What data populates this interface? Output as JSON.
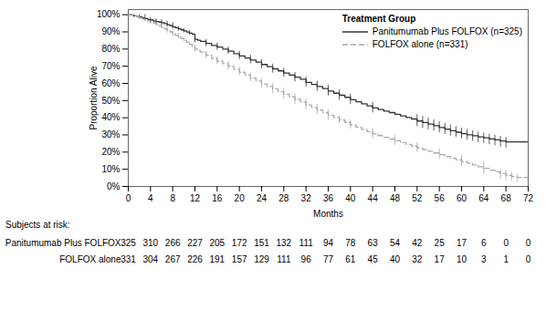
{
  "chart_data": {
    "type": "line",
    "title": "",
    "xlabel": "Months",
    "ylabel": "Proportion Alive",
    "legend_title": "Treatment Group",
    "legend": "upper right",
    "xlim": [
      0,
      72
    ],
    "ylim": [
      0,
      1.03
    ],
    "xticks": [
      0,
      4,
      8,
      12,
      16,
      20,
      24,
      28,
      32,
      36,
      40,
      44,
      48,
      52,
      56,
      60,
      64,
      68,
      72
    ],
    "yticks": [
      {
        "value": 0.0,
        "label": "0%"
      },
      {
        "value": 0.1,
        "label": "10%"
      },
      {
        "value": 0.2,
        "label": "20%"
      },
      {
        "value": 0.3,
        "label": "30%"
      },
      {
        "value": 0.4,
        "label": "40%"
      },
      {
        "value": 0.5,
        "label": "50%"
      },
      {
        "value": 0.6,
        "label": "60%"
      },
      {
        "value": 0.7,
        "label": "70%"
      },
      {
        "value": 0.8,
        "label": "80%"
      },
      {
        "value": 0.9,
        "label": "90%"
      },
      {
        "value": 1.0,
        "label": "100%"
      }
    ],
    "series": [
      {
        "name": "Panitumumab Plus FOLFOX (n=325)",
        "color": "#333333",
        "line_style": "solid",
        "x": [
          0,
          0.3,
          0.7,
          1.0,
          1.5,
          2.0,
          2.5,
          3.0,
          3.5,
          4.0,
          4.5,
          5.0,
          5.5,
          6.0,
          6.5,
          7.0,
          7.5,
          8.0,
          8.5,
          9.0,
          9.5,
          10.0,
          10.5,
          11.0,
          11.5,
          12.0,
          12.5,
          13.0,
          14.0,
          15.0,
          16.0,
          17.0,
          18.0,
          19.0,
          20.0,
          21.0,
          22.0,
          23.0,
          24.0,
          25.0,
          26.0,
          27.0,
          28.0,
          29.0,
          30.0,
          31.0,
          32.0,
          33.0,
          34.0,
          35.0,
          36.0,
          37.0,
          38.0,
          39.0,
          40.0,
          41.0,
          42.0,
          43.0,
          44.0,
          45.0,
          46.0,
          47.0,
          48.0,
          49.0,
          50.0,
          51.0,
          52.0,
          53.0,
          54.0,
          55.0,
          56.0,
          57.0,
          58.0,
          59.0,
          60.0,
          61.0,
          62.0,
          63.0,
          64.0,
          65.0,
          66.0,
          67.0,
          68.0,
          72.0
        ],
        "values": [
          1.0,
          1.0,
          0.997,
          0.994,
          0.99,
          0.987,
          0.981,
          0.978,
          0.972,
          0.969,
          0.963,
          0.96,
          0.957,
          0.954,
          0.948,
          0.942,
          0.936,
          0.93,
          0.924,
          0.918,
          0.912,
          0.906,
          0.899,
          0.893,
          0.887,
          0.857,
          0.851,
          0.845,
          0.833,
          0.821,
          0.812,
          0.8,
          0.788,
          0.773,
          0.76,
          0.748,
          0.736,
          0.724,
          0.71,
          0.697,
          0.685,
          0.673,
          0.66,
          0.648,
          0.636,
          0.624,
          0.606,
          0.594,
          0.582,
          0.57,
          0.555,
          0.543,
          0.531,
          0.519,
          0.505,
          0.493,
          0.481,
          0.469,
          0.457,
          0.448,
          0.439,
          0.43,
          0.42,
          0.411,
          0.402,
          0.393,
          0.381,
          0.372,
          0.363,
          0.354,
          0.343,
          0.334,
          0.325,
          0.316,
          0.307,
          0.301,
          0.295,
          0.289,
          0.283,
          0.277,
          0.271,
          0.265,
          0.259,
          0.259
        ],
        "ci": {
          "x": [
            1,
            2,
            3,
            4,
            5,
            6,
            7,
            8,
            9,
            10,
            11,
            12,
            14,
            16,
            18,
            20,
            22,
            24,
            26,
            28,
            30,
            32,
            34,
            36,
            38,
            40,
            44,
            52,
            53,
            54,
            55,
            56,
            57,
            58,
            59,
            60,
            61,
            62,
            63,
            64,
            65,
            66,
            67,
            68
          ],
          "lo": [
            0.985,
            0.975,
            0.965,
            0.955,
            0.945,
            0.938,
            0.93,
            0.918,
            0.905,
            0.895,
            0.882,
            0.838,
            0.814,
            0.793,
            0.769,
            0.738,
            0.714,
            0.685,
            0.66,
            0.635,
            0.609,
            0.579,
            0.554,
            0.527,
            0.502,
            0.477,
            0.428,
            0.348,
            0.338,
            0.33,
            0.322,
            0.312,
            0.303,
            0.294,
            0.285,
            0.277,
            0.27,
            0.263,
            0.256,
            0.25,
            0.243,
            0.237,
            0.23,
            0.223
          ],
          "hi": [
            1.0,
            1.0,
            1.0,
            0.984,
            0.977,
            0.971,
            0.963,
            0.955,
            0.932,
            0.92,
            0.908,
            0.879,
            0.855,
            0.835,
            0.812,
            0.788,
            0.763,
            0.738,
            0.713,
            0.688,
            0.664,
            0.638,
            0.613,
            0.588,
            0.562,
            0.537,
            0.49,
            0.418,
            0.408,
            0.398,
            0.388,
            0.377,
            0.367,
            0.358,
            0.348,
            0.339,
            0.332,
            0.325,
            0.318,
            0.311,
            0.305,
            0.298,
            0.292,
            0.285
          ]
        }
      },
      {
        "name": "FOLFOX alone (n=331)",
        "color": "#aaaaaa",
        "line_style": "dashed",
        "x": [
          0,
          0.3,
          0.7,
          1.0,
          1.5,
          2.0,
          2.5,
          3.0,
          3.5,
          4.0,
          4.5,
          5.0,
          5.5,
          6.0,
          6.5,
          7.0,
          7.5,
          8.0,
          8.5,
          9.0,
          9.5,
          10.0,
          10.5,
          11.0,
          11.5,
          12.0,
          12.5,
          13.0,
          14.0,
          15.0,
          16.0,
          17.0,
          18.0,
          19.0,
          20.0,
          21.0,
          22.0,
          23.0,
          24.0,
          25.0,
          26.0,
          27.0,
          28.0,
          29.0,
          30.0,
          31.0,
          32.0,
          33.0,
          34.0,
          35.0,
          36.0,
          37.0,
          38.0,
          39.0,
          40.0,
          41.0,
          42.0,
          43.0,
          44.0,
          45.0,
          46.0,
          47.0,
          48.0,
          49.0,
          50.0,
          51.0,
          52.0,
          53.0,
          54.0,
          55.0,
          56.0,
          57.0,
          58.0,
          59.0,
          60.0,
          61.0,
          62.0,
          63.0,
          64.0,
          65.0,
          66.0,
          67.0,
          68.0,
          69.0,
          70.0,
          72.0
        ],
        "values": [
          1.0,
          1.0,
          0.997,
          0.994,
          0.987,
          0.981,
          0.975,
          0.969,
          0.963,
          0.957,
          0.951,
          0.945,
          0.936,
          0.927,
          0.918,
          0.909,
          0.9,
          0.888,
          0.879,
          0.87,
          0.861,
          0.852,
          0.84,
          0.828,
          0.816,
          0.8,
          0.791,
          0.782,
          0.764,
          0.746,
          0.73,
          0.715,
          0.7,
          0.682,
          0.665,
          0.648,
          0.631,
          0.614,
          0.597,
          0.582,
          0.567,
          0.552,
          0.537,
          0.522,
          0.507,
          0.492,
          0.475,
          0.46,
          0.445,
          0.43,
          0.415,
          0.401,
          0.387,
          0.373,
          0.358,
          0.345,
          0.332,
          0.319,
          0.306,
          0.296,
          0.286,
          0.276,
          0.266,
          0.255,
          0.245,
          0.235,
          0.225,
          0.215,
          0.205,
          0.195,
          0.185,
          0.175,
          0.165,
          0.155,
          0.145,
          0.135,
          0.125,
          0.115,
          0.105,
          0.095,
          0.085,
          0.075,
          0.065,
          0.058,
          0.052,
          0.052
        ],
        "ci": {
          "x": [
            1,
            2,
            3,
            4,
            5,
            6,
            7,
            8,
            9,
            10,
            11,
            12,
            14,
            16,
            18,
            20,
            22,
            24,
            26,
            28,
            30,
            32,
            34,
            36,
            38,
            40,
            44,
            48,
            52,
            56,
            60,
            64,
            67,
            68,
            69,
            70
          ],
          "lo": [
            0.985,
            0.972,
            0.96,
            0.944,
            0.932,
            0.919,
            0.893,
            0.872,
            0.858,
            0.842,
            0.821,
            0.783,
            0.746,
            0.711,
            0.679,
            0.644,
            0.61,
            0.573,
            0.54,
            0.507,
            0.477,
            0.447,
            0.418,
            0.389,
            0.365,
            0.333,
            0.278,
            0.24,
            0.2,
            0.158,
            0.115,
            0.07,
            0.04,
            0.034,
            0.028,
            0.022
          ],
          "hi": [
            1.0,
            1.0,
            1.0,
            0.972,
            0.961,
            0.939,
            0.929,
            0.91,
            0.89,
            0.87,
            0.845,
            0.822,
            0.787,
            0.754,
            0.727,
            0.695,
            0.659,
            0.625,
            0.598,
            0.571,
            0.54,
            0.51,
            0.476,
            0.445,
            0.413,
            0.386,
            0.338,
            0.297,
            0.255,
            0.218,
            0.18,
            0.145,
            0.098,
            0.092,
            0.082,
            0.072
          ]
        }
      }
    ],
    "at_risk": {
      "title": "Subjects at risk:",
      "x": [
        0,
        4,
        8,
        12,
        16,
        20,
        24,
        28,
        32,
        36,
        40,
        44,
        48,
        52,
        56,
        60,
        64,
        68,
        72
      ],
      "rows": [
        {
          "label": "Panitumumab Plus FOLFOX",
          "counts": [
            325,
            310,
            266,
            227,
            205,
            172,
            151,
            132,
            111,
            94,
            78,
            63,
            54,
            42,
            25,
            17,
            6,
            0,
            0
          ]
        },
        {
          "label": "FOLFOX alone",
          "counts": [
            331,
            304,
            267,
            226,
            191,
            157,
            129,
            111,
            96,
            77,
            61,
            45,
            40,
            32,
            17,
            10,
            3,
            1,
            0
          ]
        }
      ]
    }
  }
}
